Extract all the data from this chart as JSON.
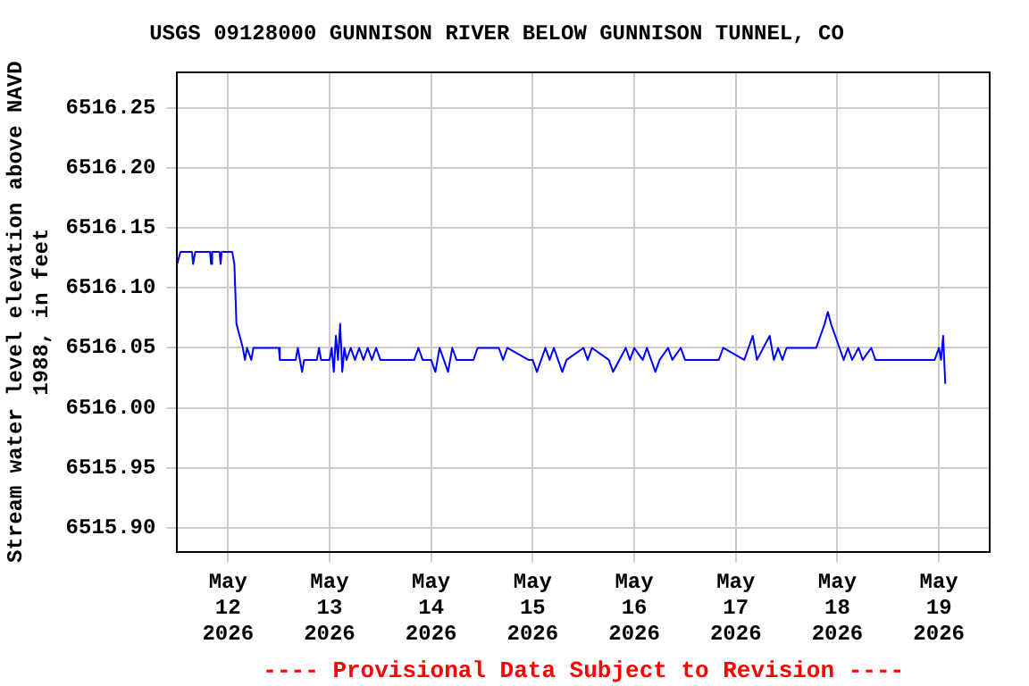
{
  "chart_data": {
    "type": "line",
    "title": "USGS 09128000 GUNNISON RIVER BELOW GUNNISON TUNNEL, CO",
    "ylabel": "Stream water level elevation above NAVD 1988, in feet",
    "x": [
      "2026-05-11T12:00",
      "2026-05-11T12:45",
      "2026-05-11T15:30",
      "2026-05-11T15:45",
      "2026-05-11T16:15",
      "2026-05-11T19:45",
      "2026-05-11T20:00",
      "2026-05-11T20:15",
      "2026-05-11T22:00",
      "2026-05-11T22:15",
      "2026-05-11T22:30",
      "2026-05-12T01:00",
      "2026-05-12T01:30",
      "2026-05-12T02:00",
      "2026-05-12T02:45",
      "2026-05-12T03:30",
      "2026-05-12T04:00",
      "2026-05-12T04:30",
      "2026-05-12T05:30",
      "2026-05-12T06:00",
      "2026-05-12T12:00",
      "2026-05-12T12:15",
      "2026-05-12T16:00",
      "2026-05-12T16:30",
      "2026-05-12T17:00",
      "2026-05-12T17:30",
      "2026-05-12T18:00",
      "2026-05-12T21:00",
      "2026-05-12T21:30",
      "2026-05-12T22:00",
      "2026-05-13T00:00",
      "2026-05-13T00:30",
      "2026-05-13T01:00",
      "2026-05-13T01:30",
      "2026-05-13T02:00",
      "2026-05-13T02:30",
      "2026-05-13T03:00",
      "2026-05-13T03:30",
      "2026-05-13T04:00",
      "2026-05-13T05:00",
      "2026-05-13T06:00",
      "2026-05-13T07:00",
      "2026-05-13T08:00",
      "2026-05-13T09:00",
      "2026-05-13T10:00",
      "2026-05-13T11:00",
      "2026-05-13T12:00",
      "2026-05-13T20:00",
      "2026-05-13T21:00",
      "2026-05-13T22:00",
      "2026-05-14T00:00",
      "2026-05-14T01:00",
      "2026-05-14T02:00",
      "2026-05-14T03:00",
      "2026-05-14T04:00",
      "2026-05-14T05:00",
      "2026-05-14T06:00",
      "2026-05-14T10:00",
      "2026-05-14T11:00",
      "2026-05-14T16:00",
      "2026-05-14T17:00",
      "2026-05-14T18:00",
      "2026-05-14T23:00",
      "2026-05-15T00:00",
      "2026-05-15T01:00",
      "2026-05-15T03:00",
      "2026-05-15T04:00",
      "2026-05-15T05:00",
      "2026-05-15T07:00",
      "2026-05-15T08:00",
      "2026-05-15T12:00",
      "2026-05-15T13:00",
      "2026-05-15T14:00",
      "2026-05-15T18:00",
      "2026-05-15T19:00",
      "2026-05-15T22:00",
      "2026-05-15T23:00",
      "2026-05-16T00:00",
      "2026-05-16T02:00",
      "2026-05-16T03:00",
      "2026-05-16T05:00",
      "2026-05-16T06:00",
      "2026-05-16T08:00",
      "2026-05-16T09:00",
      "2026-05-16T11:00",
      "2026-05-16T12:00",
      "2026-05-16T20:00",
      "2026-05-16T21:00",
      "2026-05-17T02:00",
      "2026-05-17T03:00",
      "2026-05-17T04:00",
      "2026-05-17T05:00",
      "2026-05-17T08:00",
      "2026-05-17T09:00",
      "2026-05-17T10:00",
      "2026-05-17T11:00",
      "2026-05-17T12:00",
      "2026-05-17T19:00",
      "2026-05-17T20:00",
      "2026-05-17T21:00",
      "2026-05-17T21:45",
      "2026-05-17T22:30",
      "2026-05-17T23:30",
      "2026-05-18T00:30",
      "2026-05-18T01:30",
      "2026-05-18T02:30",
      "2026-05-18T03:30",
      "2026-05-18T05:00",
      "2026-05-18T06:00",
      "2026-05-18T08:00",
      "2026-05-18T09:00",
      "2026-05-18T11:00",
      "2026-05-18T12:00",
      "2026-05-18T23:00",
      "2026-05-19T00:00",
      "2026-05-19T00:30",
      "2026-05-19T01:00",
      "2026-05-19T01:30"
    ],
    "series": [
      {
        "color": "#0000ff",
        "values": [
          6516.12,
          6516.13,
          6516.13,
          6516.12,
          6516.13,
          6516.13,
          6516.12,
          6516.13,
          6516.13,
          6516.12,
          6516.13,
          6516.13,
          6516.12,
          6516.07,
          6516.06,
          6516.05,
          6516.04,
          6516.05,
          6516.04,
          6516.05,
          6516.05,
          6516.04,
          6516.04,
          6516.05,
          6516.04,
          6516.03,
          6516.04,
          6516.04,
          6516.05,
          6516.04,
          6516.04,
          6516.05,
          6516.03,
          6516.06,
          6516.04,
          6516.07,
          6516.03,
          6516.05,
          6516.04,
          6516.05,
          6516.04,
          6516.05,
          6516.04,
          6516.05,
          6516.04,
          6516.05,
          6516.04,
          6516.04,
          6516.05,
          6516.04,
          6516.04,
          6516.03,
          6516.05,
          6516.04,
          6516.03,
          6516.05,
          6516.04,
          6516.04,
          6516.05,
          6516.05,
          6516.04,
          6516.05,
          6516.04,
          6516.04,
          6516.03,
          6516.05,
          6516.04,
          6516.05,
          6516.03,
          6516.04,
          6516.05,
          6516.04,
          6516.05,
          6516.04,
          6516.03,
          6516.05,
          6516.04,
          6516.05,
          6516.04,
          6516.05,
          6516.03,
          6516.04,
          6516.05,
          6516.04,
          6516.05,
          6516.04,
          6516.04,
          6516.05,
          6516.04,
          6516.05,
          6516.06,
          6516.04,
          6516.06,
          6516.04,
          6516.05,
          6516.04,
          6516.05,
          6516.05,
          6516.06,
          6516.07,
          6516.08,
          6516.07,
          6516.06,
          6516.05,
          6516.04,
          6516.05,
          6516.04,
          6516.05,
          6516.04,
          6516.05,
          6516.04,
          6516.04,
          6516.04,
          6516.04,
          6516.05,
          6516.04,
          6516.06,
          6516.02
        ]
      }
    ],
    "xlim": [
      "2026-05-11T12:00",
      "2026-05-19T12:00"
    ],
    "xticks": [
      {
        "value": "2026-05-12",
        "label": "May\n12\n2026"
      },
      {
        "value": "2026-05-13",
        "label": "May\n13\n2026"
      },
      {
        "value": "2026-05-14",
        "label": "May\n14\n2026"
      },
      {
        "value": "2026-05-15",
        "label": "May\n15\n2026"
      },
      {
        "value": "2026-05-16",
        "label": "May\n16\n2026"
      },
      {
        "value": "2026-05-17",
        "label": "May\n17\n2026"
      },
      {
        "value": "2026-05-18",
        "label": "May\n18\n2026"
      },
      {
        "value": "2026-05-19",
        "label": "May\n19\n2026"
      }
    ],
    "ylim": [
      6515.88,
      6516.28
    ],
    "yticks": [
      {
        "value": 6515.9,
        "label": "6515.90"
      },
      {
        "value": 6515.95,
        "label": "6515.95"
      },
      {
        "value": 6516.0,
        "label": "6516.00"
      },
      {
        "value": 6516.05,
        "label": "6516.05"
      },
      {
        "value": 6516.1,
        "label": "6516.10"
      },
      {
        "value": 6516.15,
        "label": "6516.15"
      },
      {
        "value": 6516.2,
        "label": "6516.20"
      },
      {
        "value": 6516.25,
        "label": "6516.25"
      }
    ],
    "grid": true,
    "marker": "none",
    "line_style": "solid",
    "legend": false,
    "annotations": [
      "---- Provisional Data Subject to Revision ----"
    ]
  }
}
